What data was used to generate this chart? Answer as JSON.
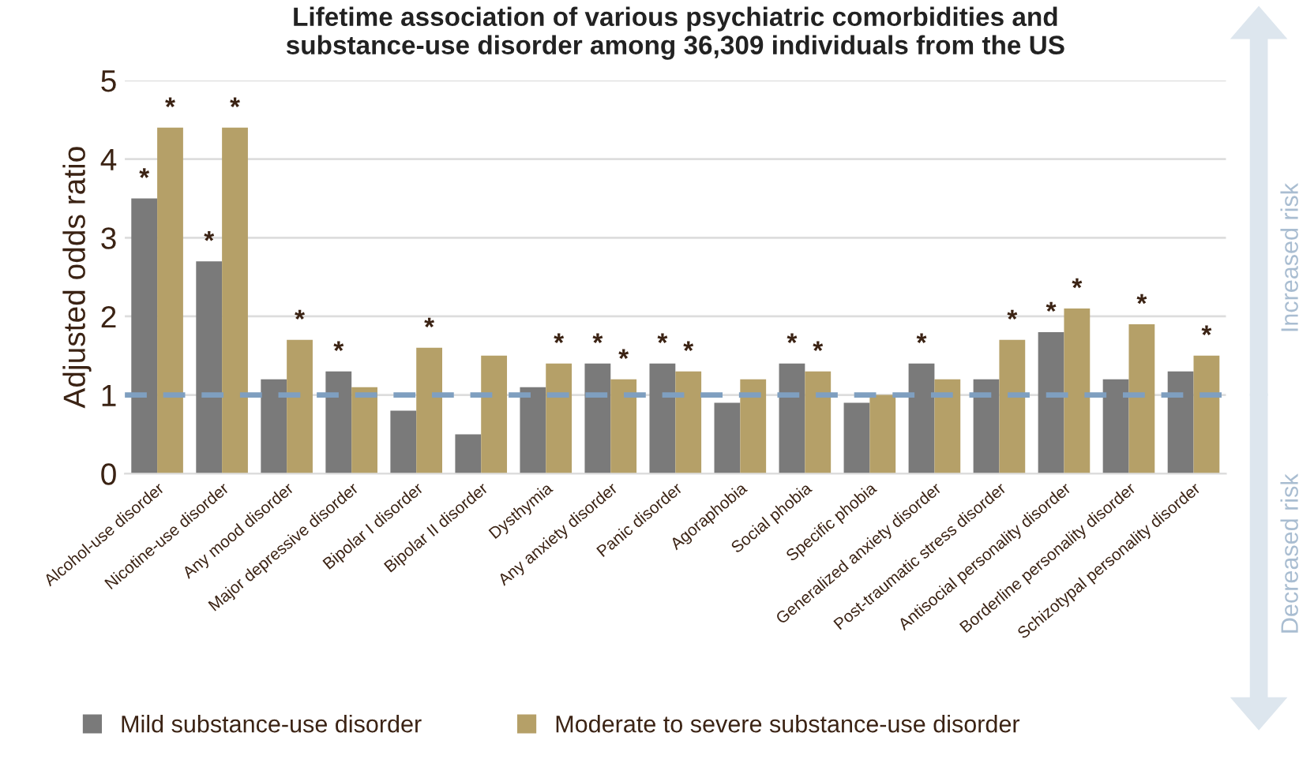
{
  "chart_data": {
    "type": "bar",
    "title": "Lifetime association of various psychiatric comorbidities and\nsubstance-use disorder among 36,309 individuals from the US",
    "ylabel": "Adjusted odds ratio",
    "categories": [
      "Alcohol-use disorder",
      "Nicotine-use disorder",
      "Any mood disorder",
      "Major depressive disorder",
      "Bipolar I disorder",
      "Bipolar II disorder",
      "Dysthymia",
      "Any anxiety disorder",
      "Panic disorder",
      "Agoraphobia",
      "Social phobia",
      "Specific phobia",
      "Generalized anxiety disorder",
      "Post-traumatic stress disorder",
      "Antisocial personality disorder",
      "Borderline personality disorder",
      "Schizotypal personality disorder"
    ],
    "series": [
      {
        "name": "Mild substance-use disorder",
        "color": "#7a7a7a",
        "values": [
          3.5,
          2.7,
          1.2,
          1.3,
          0.8,
          0.5,
          1.1,
          1.4,
          1.4,
          0.9,
          1.4,
          0.9,
          1.4,
          1.2,
          1.8,
          1.2,
          1.3
        ],
        "value_labels": [
          "*",
          "*",
          null,
          "*",
          null,
          null,
          null,
          "*",
          "*",
          null,
          "*",
          null,
          "*",
          null,
          "*",
          null,
          null
        ]
      },
      {
        "name": "Moderate to severe substance-use disorder",
        "color": "#b5a068",
        "values": [
          4.4,
          4.4,
          1.7,
          1.1,
          1.6,
          1.5,
          1.4,
          1.2,
          1.3,
          1.2,
          1.3,
          1.0,
          1.2,
          1.7,
          2.1,
          1.9,
          1.5
        ],
        "value_labels": [
          "*",
          "*",
          "*",
          null,
          "*",
          null,
          "*",
          "*",
          "*",
          null,
          "*",
          null,
          null,
          "*",
          "*",
          "*",
          "*"
        ]
      }
    ],
    "ylim": [
      0,
      5
    ],
    "yticks": [
      0,
      1,
      2,
      3,
      4,
      5
    ],
    "grid": "y",
    "legend": "bottom",
    "ref_lines": [
      {
        "axis": "y",
        "value": 1,
        "color": "#7f9fc0",
        "line_style": "dashed"
      }
    ],
    "annotations": [
      "Increased risk",
      "Decreased risk"
    ]
  }
}
